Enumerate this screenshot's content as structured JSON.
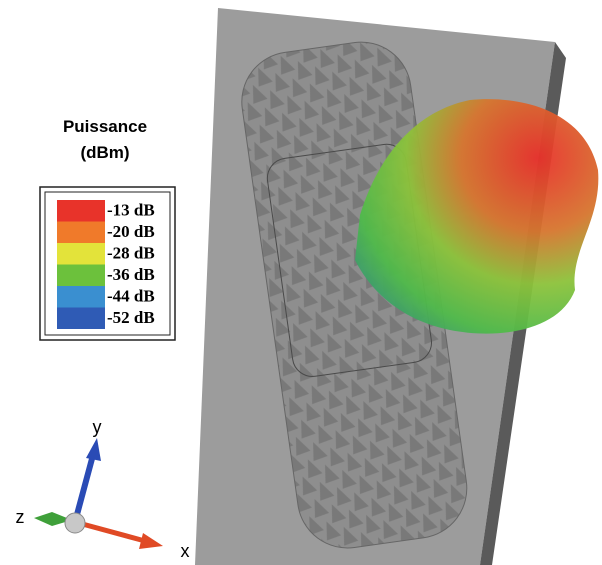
{
  "legend": {
    "title": [
      "Puissance",
      "(dBm)"
    ],
    "entries": [
      {
        "label": "-13 dB",
        "color": "#e8332a"
      },
      {
        "label": "-20 dB",
        "color": "#f07a2a"
      },
      {
        "label": "-28 dB",
        "color": "#e3e33a"
      },
      {
        "label": "-36 dB",
        "color": "#6cc13c"
      },
      {
        "label": "-44 dB",
        "color": "#3a8fd0"
      },
      {
        "label": "-52 dB",
        "color": "#2f5bb5"
      }
    ]
  },
  "axes": {
    "x": "x",
    "y": "y",
    "z": "z"
  }
}
